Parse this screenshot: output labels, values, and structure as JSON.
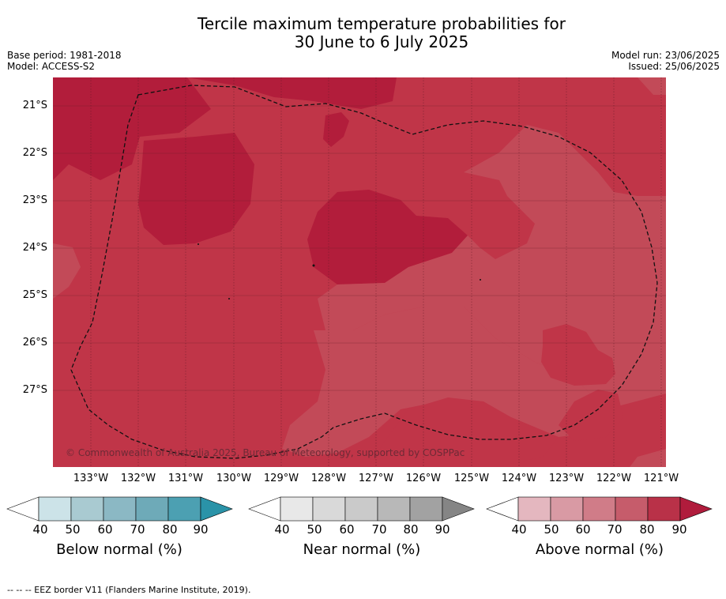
{
  "title_line1": "Tercile maximum temperature probabilities for",
  "title_line2": "30 June to 6 July 2025",
  "base_period": "Base period: 1981-2018",
  "model": "Model: ACCESS-S2",
  "model_run": "Model run: 23/06/2025",
  "issued": "Issued: 25/06/2025",
  "copyright": "© Commonwealth of Australia 2025, Bureau of Meteorology, supported by COSPPac",
  "lat_labels": [
    "21°S",
    "22°S",
    "23°S",
    "24°S",
    "25°S",
    "26°S",
    "27°S"
  ],
  "lon_labels": [
    "133°W",
    "132°W",
    "131°W",
    "130°W",
    "129°W",
    "128°W",
    "127°W",
    "126°W",
    "125°W",
    "124°W",
    "123°W",
    "122°W",
    "121°W"
  ],
  "colorbars": [
    {
      "caption": "Below normal (%)",
      "ticks": [
        "40",
        "50",
        "60",
        "70",
        "80",
        "90"
      ],
      "colors": [
        "#ffffff",
        "#cce3e8",
        "#a9cad1",
        "#8bb8c4",
        "#6eaab8",
        "#4ca0b2",
        "#2a93a8"
      ]
    },
    {
      "caption": "Near normal (%)",
      "ticks": [
        "40",
        "50",
        "60",
        "70",
        "80",
        "90"
      ],
      "colors": [
        "#ffffff",
        "#e8e8e8",
        "#d9d9d9",
        "#cacaca",
        "#b8b8b8",
        "#a2a2a2",
        "#858585"
      ]
    },
    {
      "caption": "Above normal (%)",
      "ticks": [
        "40",
        "50",
        "60",
        "70",
        "80",
        "90"
      ],
      "colors": [
        "#ffffff",
        "#e4b7bf",
        "#d99aa4",
        "#d07c88",
        "#c65c6b",
        "#b93148",
        "#b01c3c"
      ]
    }
  ],
  "footnote": "--  --  -- EEZ border V11 (Flanders Marine Institute, 2019).",
  "map_colors": {
    "base": "#c03548",
    "dark": "#b21d3b",
    "light": "#c24a58"
  }
}
